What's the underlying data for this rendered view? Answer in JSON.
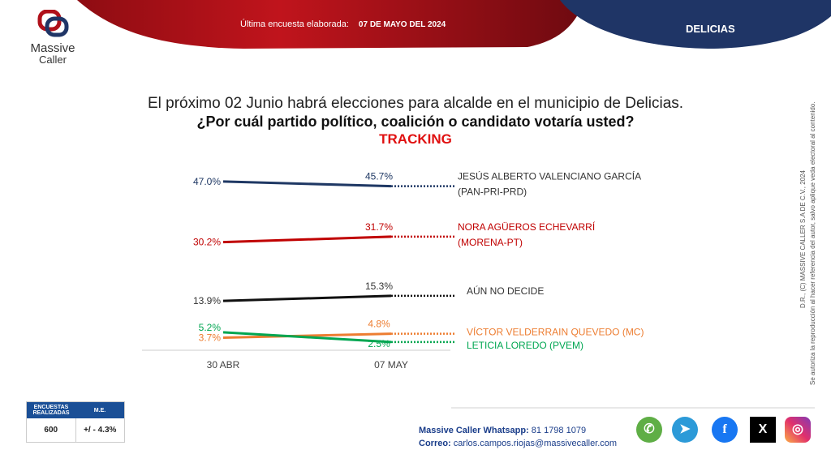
{
  "header": {
    "last_survey_label": "Última encuesta elaborada:",
    "last_survey_date": "07 DE MAYO DEL 2024",
    "city": "DELICIAS",
    "logo_line1": "Massive",
    "logo_line2": "Caller"
  },
  "question": {
    "line1": "El próximo 02 Junio habrá elecciones para alcalde en el municipio de Delicias.",
    "line2": "¿Por cuál partido político, coalición o candidato votaría usted?",
    "line3": "TRACKING"
  },
  "chart_data": {
    "type": "line",
    "title": "TRACKING",
    "categories": [
      "30 ABR",
      "07 MAY"
    ],
    "ylim": [
      0,
      50
    ],
    "grid": false,
    "series": [
      {
        "name": "JESÚS ALBERTO VALENCIANO GARCÍA",
        "party": "(PAN-PRI-PRD)",
        "values": [
          47.0,
          45.7
        ],
        "labels": [
          "47.0%",
          "45.7%"
        ],
        "color": "#1f3864"
      },
      {
        "name": "NORA AGÜEROS ECHEVARRÍ",
        "party": "(MORENA-PT)",
        "values": [
          30.2,
          31.7
        ],
        "labels": [
          "30.2%",
          "31.7%"
        ],
        "color": "#c00000"
      },
      {
        "name": "AÚN NO DECIDE",
        "party": "",
        "values": [
          13.9,
          15.3
        ],
        "labels": [
          "13.9%",
          "15.3%"
        ],
        "color": "#111111"
      },
      {
        "name": "VÍCTOR VELDERRAIN QUEVEDO (MC)",
        "party": "",
        "values": [
          3.7,
          4.8
        ],
        "labels": [
          "3.7%",
          "4.8%"
        ],
        "color": "#ed7d31"
      },
      {
        "name": "LETICIA LOREDO (PVEM)",
        "party": "",
        "values": [
          5.2,
          2.5
        ],
        "labels": [
          "5.2%",
          "2.5%"
        ],
        "color": "#00a651"
      }
    ]
  },
  "copyright": {
    "line1": "D.R., (C) MASSIVE CALLER S.A DE C.V., 2024",
    "line2": "Se autoriza la reproducción al hacer referencia del autor, salvo aplique veda electoral al contenido."
  },
  "stats": {
    "h1": "ENCUESTAS REALIZADAS",
    "h2": "M.E.",
    "v1": "600",
    "v2": "+/ - 4.3%"
  },
  "contact": {
    "wa_label": "Massive Caller Whatsapp:",
    "wa_value": "81 1798 1079",
    "mail_label": "Correo:",
    "mail_value": "carlos.campos.riojas@massivecaller.com"
  },
  "social": [
    "whatsapp-icon",
    "telegram-icon",
    "facebook-icon",
    "x-icon",
    "instagram-icon"
  ]
}
